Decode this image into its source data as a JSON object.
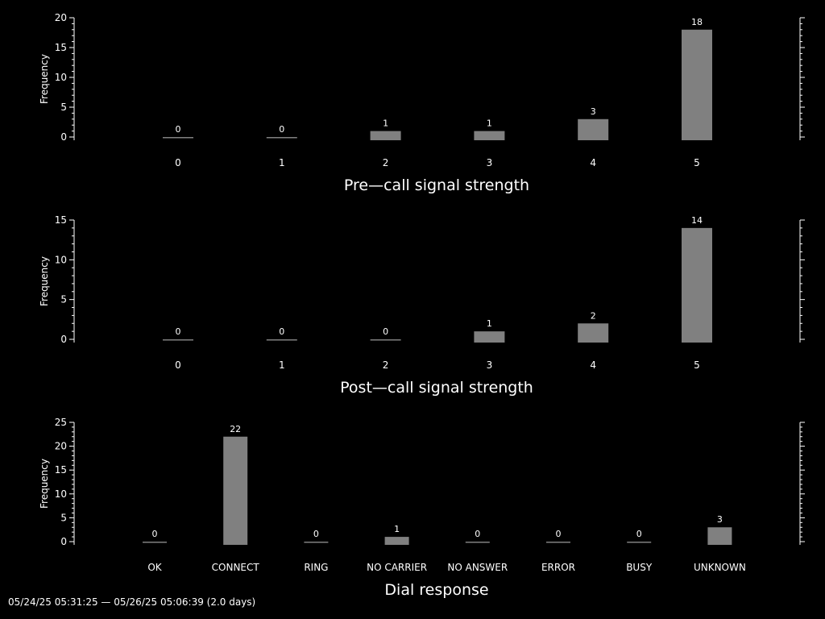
{
  "colors": {
    "background": "#000000",
    "bar": "#808080",
    "text": "#ffffff",
    "axis": "#ffffff"
  },
  "footer": "05/24/25 05:31:25 — 05/26/25 05:06:39 (2.0 days)",
  "chart_data": [
    {
      "type": "bar",
      "categories": [
        "0",
        "1",
        "2",
        "3",
        "4",
        "5"
      ],
      "values": [
        0,
        0,
        1,
        1,
        3,
        18
      ],
      "xlabel": "Pre—call signal strength",
      "ylabel": "Frequency",
      "ylim": [
        0,
        20
      ],
      "yticks": [
        0,
        5,
        10,
        15,
        20
      ],
      "grid": false
    },
    {
      "type": "bar",
      "categories": [
        "0",
        "1",
        "2",
        "3",
        "4",
        "5"
      ],
      "values": [
        0,
        0,
        0,
        1,
        2,
        14
      ],
      "xlabel": "Post—call signal strength",
      "ylabel": "Frequency",
      "ylim": [
        0,
        15
      ],
      "yticks": [
        0,
        5,
        10,
        15
      ],
      "grid": false
    },
    {
      "type": "bar",
      "categories": [
        "OK",
        "CONNECT",
        "RING",
        "NO CARRIER",
        "NO ANSWER",
        "ERROR",
        "BUSY",
        "UNKNOWN"
      ],
      "values": [
        0,
        22,
        0,
        1,
        0,
        0,
        0,
        3
      ],
      "xlabel": "Dial response",
      "ylabel": "Frequency",
      "ylim": [
        0,
        25
      ],
      "yticks": [
        0,
        5,
        10,
        15,
        20,
        25
      ],
      "grid": false
    }
  ]
}
